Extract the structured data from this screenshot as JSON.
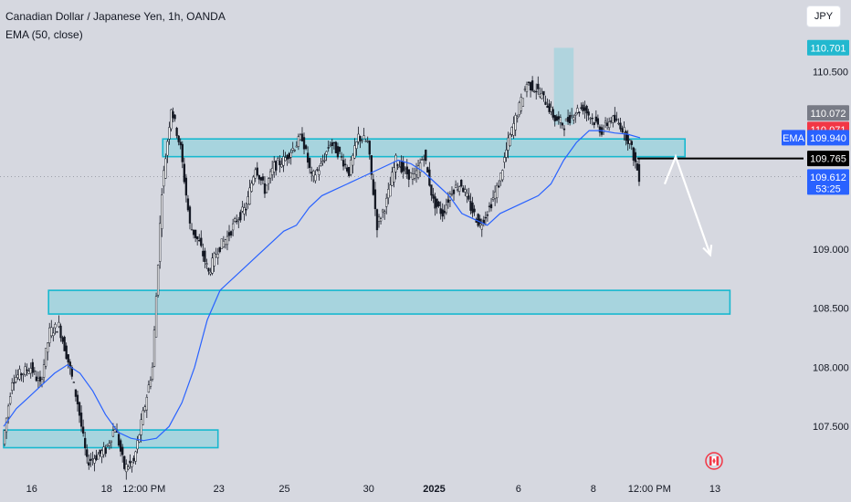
{
  "header": {
    "title": "Canadian Dollar / Japanese Yen, 1h, OANDA",
    "indicator": "EMA (50, close)",
    "currency_button": "JPY"
  },
  "colors": {
    "background": "#d6d8e0",
    "candle": "#131722",
    "ema_line": "#2962ff",
    "zone_fill": "#9fd3dd",
    "zone_border": "#17b8cf",
    "arrow": "#ffffff",
    "badge_high": "#22b8cf",
    "badge_prev": "#787b86",
    "badge_last": "#f23645",
    "badge_ema": "#2962ff",
    "badge_level": "#000000",
    "badge_bid": "#2962ff"
  },
  "chart_data": {
    "type": "candlestick",
    "instrument": "Canadian Dollar / Japanese Yen",
    "timeframe": "1h",
    "source": "OANDA",
    "ylim": [
      107.0,
      110.95
    ],
    "y_ticks": [
      107.5,
      108.0,
      108.5,
      109.0,
      109.5,
      110.0,
      110.5
    ],
    "y_tick_labels": [
      "107.500",
      "108.000",
      "108.500",
      "109.000",
      "",
      "",
      "110.500"
    ],
    "x_ticks": [
      {
        "label": "16",
        "i": 3
      },
      {
        "label": "18",
        "i": 11
      },
      {
        "label": "12:00 PM",
        "i": 15
      },
      {
        "label": "23",
        "i": 23
      },
      {
        "label": "25",
        "i": 30
      },
      {
        "label": "30",
        "i": 39
      },
      {
        "label": "2025",
        "i": 46
      },
      {
        "label": "6",
        "i": 55
      },
      {
        "label": "8",
        "i": 63
      },
      {
        "label": "12:00 PM",
        "i": 69
      },
      {
        "label": "13",
        "i": 76
      }
    ],
    "close_path": [
      107.35,
      107.9,
      107.95,
      108.0,
      107.85,
      108.3,
      108.35,
      108.05,
      107.7,
      107.2,
      107.25,
      107.3,
      107.5,
      107.15,
      107.2,
      107.6,
      108.0,
      109.5,
      110.2,
      109.85,
      109.2,
      109.05,
      108.8,
      109.0,
      109.1,
      109.25,
      109.35,
      109.7,
      109.5,
      109.7,
      109.75,
      109.85,
      109.95,
      109.6,
      109.7,
      109.9,
      109.8,
      109.65,
      109.95,
      109.9,
      109.2,
      109.4,
      109.75,
      109.65,
      109.6,
      109.8,
      109.4,
      109.3,
      109.5,
      109.55,
      109.35,
      109.2,
      109.35,
      109.55,
      109.9,
      110.15,
      110.4,
      110.35,
      110.25,
      110.1,
      110.05,
      110.15,
      110.2,
      110.1,
      110.0,
      110.1,
      110.05,
      109.9,
      109.612
    ],
    "ema_50": [
      107.5,
      107.65,
      107.75,
      107.85,
      107.95,
      108.02,
      107.95,
      107.8,
      107.6,
      107.45,
      107.4,
      107.38,
      107.4,
      107.5,
      107.7,
      108.0,
      108.4,
      108.65,
      108.75,
      108.85,
      108.95,
      109.05,
      109.15,
      109.2,
      109.35,
      109.45,
      109.5,
      109.55,
      109.6,
      109.65,
      109.7,
      109.75,
      109.72,
      109.65,
      109.55,
      109.45,
      109.3,
      109.25,
      109.2,
      109.3,
      109.35,
      109.4,
      109.45,
      109.55,
      109.75,
      109.9,
      110.0,
      110.0,
      109.98,
      109.97,
      109.94
    ],
    "zones": [
      {
        "from_i": 17,
        "to_i": 72.8,
        "low": 109.78,
        "high": 109.93
      },
      {
        "from_i": 4.8,
        "to_i": 77.6,
        "low": 108.45,
        "high": 108.65
      },
      {
        "from_i": 0,
        "to_i": 22.9,
        "low": 107.32,
        "high": 107.47
      },
      {
        "from_i": 58.8,
        "to_i": 60.9,
        "low": 110.05,
        "high": 110.7
      }
    ],
    "horizontal_line": {
      "value": 109.765,
      "from_i": 67.7
    },
    "projection_arrow": [
      {
        "i": 71.8,
        "y": 109.78
      },
      {
        "i": 75.5,
        "y": 108.95
      }
    ],
    "price_badges": [
      {
        "label": "110.701",
        "value": 110.701,
        "color_key": "badge_high"
      },
      {
        "label": "110.072",
        "value": 110.072,
        "color_key": "badge_prev"
      },
      {
        "label": "110.071",
        "value": 110.071,
        "color_key": "badge_last"
      },
      {
        "label": "109.940",
        "value": 109.94,
        "color_key": "badge_ema",
        "tag": "EMA"
      },
      {
        "label": "109.765",
        "value": 109.765,
        "color_key": "badge_level"
      },
      {
        "label": "109.612",
        "value": 109.612,
        "color_key": "badge_bid",
        "sub": "53:25"
      }
    ]
  }
}
